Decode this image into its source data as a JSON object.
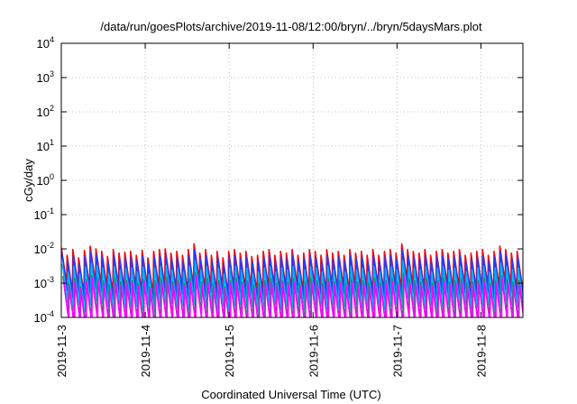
{
  "chart_data": {
    "type": "line",
    "title": "/data/run/goesPlots/archive/2019-11-08/12:00/bryn/../bryn/5daysMars.plot",
    "xlabel": "Coordinated Universal Time (UTC)",
    "ylabel": "cGy/day",
    "y_scale": "log",
    "grid": true,
    "ylim": [
      0.0001,
      10000
    ],
    "xlim": [
      "2019-11-03T00:00",
      "2019-11-08T12:00"
    ],
    "x_ticks": [
      "2019-11-3",
      "2019-11-4",
      "2019-11-5",
      "2019-11-6",
      "2019-11-7",
      "2019-11-8"
    ],
    "y_ticks": [
      {
        "value": 0.0001,
        "base": "10",
        "exp": "-4"
      },
      {
        "value": 0.001,
        "base": "10",
        "exp": "-3"
      },
      {
        "value": 0.01,
        "base": "10",
        "exp": "-2"
      },
      {
        "value": 0.1,
        "base": "10",
        "exp": "-1"
      },
      {
        "value": 1,
        "base": "10",
        "exp": "0"
      },
      {
        "value": 10,
        "base": "10",
        "exp": "1"
      },
      {
        "value": 100,
        "base": "10",
        "exp": "2"
      },
      {
        "value": 1000,
        "base": "10",
        "exp": "3"
      },
      {
        "value": 10000,
        "base": "10",
        "exp": "4"
      }
    ],
    "series": [
      {
        "color": "#ff0000",
        "peaks": [
          0.011,
          0.0065,
          0.0095,
          0.0055,
          0.009,
          0.012,
          0.01,
          0.0085,
          0.006,
          0.0095,
          0.0075,
          0.008,
          0.0085,
          0.0065,
          0.009,
          0.0055,
          0.0085,
          0.0095,
          0.01,
          0.0075,
          0.0085,
          0.0065,
          0.0095,
          0.014,
          0.0075,
          0.0095,
          0.0065,
          0.0085,
          0.0055,
          0.0085,
          0.0095,
          0.0075,
          0.0085,
          0.006,
          0.0065,
          0.0085,
          0.0095,
          0.0065,
          0.0085,
          0.0075,
          0.0095,
          0.0065,
          0.0075,
          0.0095,
          0.0085,
          0.0065,
          0.0095,
          0.0075,
          0.0085,
          0.0065,
          0.0095,
          0.0075,
          0.0085,
          0.0065,
          0.0095,
          0.0065,
          0.0085,
          0.0095,
          0.0075,
          0.014,
          0.0095,
          0.0085,
          0.0075,
          0.0095,
          0.0065,
          0.0085,
          0.0095,
          0.0075,
          0.0085,
          0.0095,
          0.0065,
          0.0075,
          0.0085,
          0.0095,
          0.0065,
          0.0085,
          0.012,
          0.0095,
          0.0075,
          0.0085
        ],
        "trough_ratio": 0.09
      },
      {
        "color": "#1f3fff",
        "peaks": [
          0.0075,
          0.0045,
          0.0065,
          0.0038,
          0.0062,
          0.0082,
          0.0068,
          0.0058,
          0.0041,
          0.0065,
          0.0051,
          0.0055,
          0.0058,
          0.0044,
          0.0062,
          0.0038,
          0.0058,
          0.0065,
          0.0068,
          0.0051,
          0.0058,
          0.0044,
          0.0065,
          0.0095,
          0.0051,
          0.0065,
          0.0044,
          0.0058,
          0.0038,
          0.0058,
          0.0065,
          0.0051,
          0.0058,
          0.0041,
          0.0044,
          0.0058,
          0.0065,
          0.0044,
          0.0058,
          0.0051,
          0.0065,
          0.0044,
          0.0051,
          0.0065,
          0.0058,
          0.0044,
          0.0065,
          0.0051,
          0.0058,
          0.0044,
          0.0065,
          0.0051,
          0.0058,
          0.0044,
          0.0065,
          0.0044,
          0.0058,
          0.0065,
          0.0051,
          0.0095,
          0.0065,
          0.0058,
          0.0051,
          0.0065,
          0.0044,
          0.0058,
          0.0065,
          0.0051,
          0.0058,
          0.0065,
          0.0044,
          0.0051,
          0.0058,
          0.0065,
          0.0044,
          0.0058,
          0.0082,
          0.0065,
          0.0051,
          0.0058
        ],
        "trough_ratio": 0.08
      },
      {
        "color": "#00b4ff",
        "peaks": [
          0.0035,
          0.0021,
          0.003,
          0.0018,
          0.0029,
          0.0038,
          0.0032,
          0.0027,
          0.0019,
          0.003,
          0.0024,
          0.0026,
          0.0027,
          0.0021,
          0.0029,
          0.0018,
          0.0027,
          0.003,
          0.0032,
          0.0024,
          0.0027,
          0.0021,
          0.003,
          0.0045,
          0.0024,
          0.003,
          0.0021,
          0.0027,
          0.0018,
          0.0027,
          0.003,
          0.0024,
          0.0027,
          0.0019,
          0.0021,
          0.0027,
          0.003,
          0.0021,
          0.0027,
          0.0024,
          0.003,
          0.0021,
          0.0024,
          0.003,
          0.0027,
          0.0021,
          0.003,
          0.0024,
          0.0027,
          0.0021,
          0.003,
          0.0024,
          0.0027,
          0.0021,
          0.003,
          0.0021,
          0.0027,
          0.003,
          0.0024,
          0.0045,
          0.003,
          0.0027,
          0.0024,
          0.003,
          0.0021,
          0.0027,
          0.003,
          0.0024,
          0.0027,
          0.003,
          0.0021,
          0.0024,
          0.0027,
          0.003,
          0.0021,
          0.0027,
          0.0038,
          0.003,
          0.0024,
          0.0027
        ],
        "trough_ratio": 0.08
      },
      {
        "color": "#00a050",
        "peaks": [
          0.0016,
          0.001,
          0.0014,
          0.0008,
          0.0013,
          0.0017,
          0.0015,
          0.0012,
          0.0009,
          0.0014,
          0.0011,
          0.0012,
          0.0012,
          0.001,
          0.0013,
          0.0008,
          0.0012,
          0.0014,
          0.0015,
          0.0011,
          0.0012,
          0.001,
          0.0014,
          0.002,
          0.0011,
          0.0014,
          0.001,
          0.0012,
          0.0008,
          0.0012,
          0.0014,
          0.0011,
          0.0012,
          0.0009,
          0.001,
          0.0012,
          0.0014,
          0.001,
          0.0012,
          0.0011,
          0.0014,
          0.001,
          0.0011,
          0.0014,
          0.0012,
          0.001,
          0.0014,
          0.0011,
          0.0012,
          0.001,
          0.0014,
          0.0011,
          0.0012,
          0.001,
          0.0014,
          0.001,
          0.0012,
          0.0014,
          0.0011,
          0.002,
          0.0014,
          0.0012,
          0.0011,
          0.0014,
          0.001,
          0.0012,
          0.0014,
          0.0011,
          0.0012,
          0.0014,
          0.001,
          0.0011,
          0.0012,
          0.0014,
          0.001,
          0.0012,
          0.0017,
          0.0014,
          0.0011,
          0.0012
        ],
        "trough_ratio": 0.07
      },
      {
        "color": "#ff00ff",
        "peaks": [
          0.0013,
          0.0008,
          0.0011,
          0.0007,
          0.0011,
          0.0014,
          0.0012,
          0.001,
          0.0007,
          0.0011,
          0.0009,
          0.001,
          0.001,
          0.0008,
          0.0011,
          0.0007,
          0.001,
          0.0011,
          0.0012,
          0.0009,
          0.001,
          0.0008,
          0.0011,
          0.0016,
          0.0009,
          0.0011,
          0.0008,
          0.001,
          0.0007,
          0.001,
          0.0011,
          0.0009,
          0.001,
          0.0007,
          0.0008,
          0.001,
          0.0011,
          0.0008,
          0.001,
          0.0009,
          0.0011,
          0.0008,
          0.0009,
          0.0011,
          0.001,
          0.0008,
          0.0011,
          0.0009,
          0.001,
          0.0008,
          0.0011,
          0.0009,
          0.001,
          0.0008,
          0.0011,
          0.0008,
          0.001,
          0.0011,
          0.0009,
          0.0016,
          0.0011,
          0.001,
          0.0009,
          0.0011,
          0.0008,
          0.001,
          0.0011,
          0.0009,
          0.001,
          0.0011,
          0.0008,
          0.0009,
          0.001,
          0.0011,
          0.0008,
          0.001,
          0.0014,
          0.0011,
          0.0009,
          0.001
        ],
        "trough_ratio": 0.06
      }
    ]
  }
}
